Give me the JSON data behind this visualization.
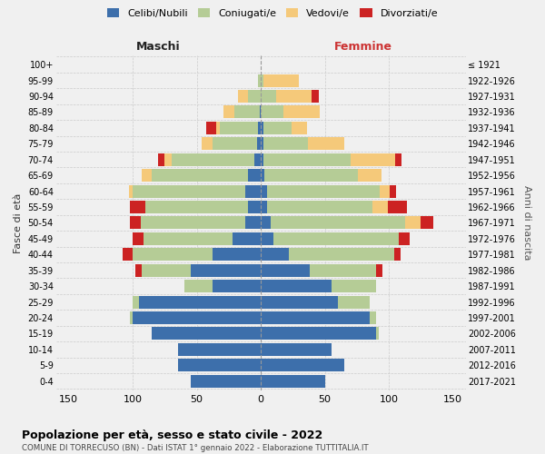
{
  "age_groups": [
    "100+",
    "95-99",
    "90-94",
    "85-89",
    "80-84",
    "75-79",
    "70-74",
    "65-69",
    "60-64",
    "55-59",
    "50-54",
    "45-49",
    "40-44",
    "35-39",
    "30-34",
    "25-29",
    "20-24",
    "15-19",
    "10-14",
    "5-9",
    "0-4"
  ],
  "birth_years": [
    "≤ 1921",
    "1922-1926",
    "1927-1931",
    "1932-1936",
    "1937-1941",
    "1942-1946",
    "1947-1951",
    "1952-1956",
    "1957-1961",
    "1962-1966",
    "1967-1971",
    "1972-1976",
    "1977-1981",
    "1982-1986",
    "1987-1991",
    "1992-1996",
    "1997-2001",
    "2002-2006",
    "2007-2011",
    "2012-2016",
    "2017-2021"
  ],
  "maschi": {
    "celibi": [
      0,
      0,
      0,
      1,
      2,
      3,
      5,
      10,
      12,
      10,
      12,
      22,
      38,
      55,
      38,
      95,
      100,
      85,
      65,
      65,
      55
    ],
    "coniugati": [
      0,
      2,
      10,
      20,
      30,
      35,
      65,
      75,
      88,
      80,
      82,
      70,
      62,
      38,
      22,
      5,
      2,
      0,
      0,
      0,
      0
    ],
    "vedovi": [
      0,
      0,
      8,
      8,
      3,
      8,
      5,
      8,
      3,
      0,
      0,
      0,
      0,
      0,
      0,
      0,
      0,
      0,
      0,
      0,
      0
    ],
    "divorziati": [
      0,
      0,
      0,
      0,
      8,
      0,
      5,
      0,
      0,
      12,
      8,
      8,
      8,
      5,
      0,
      0,
      0,
      0,
      0,
      0,
      0
    ]
  },
  "femmine": {
    "nubili": [
      0,
      0,
      0,
      0,
      2,
      2,
      2,
      3,
      5,
      5,
      8,
      10,
      22,
      38,
      55,
      60,
      85,
      90,
      55,
      65,
      50
    ],
    "coniugate": [
      0,
      2,
      12,
      18,
      22,
      35,
      68,
      73,
      88,
      82,
      105,
      98,
      82,
      52,
      35,
      25,
      5,
      2,
      0,
      0,
      0
    ],
    "vedove": [
      0,
      28,
      28,
      28,
      12,
      28,
      35,
      18,
      8,
      12,
      12,
      0,
      0,
      0,
      0,
      0,
      0,
      0,
      0,
      0,
      0
    ],
    "divorziate": [
      0,
      0,
      5,
      0,
      0,
      0,
      5,
      0,
      5,
      15,
      10,
      8,
      5,
      5,
      0,
      0,
      0,
      0,
      0,
      0,
      0
    ]
  },
  "color_celibi": "#3d6fab",
  "color_coniugati": "#b5cc96",
  "color_vedovi": "#f5c97a",
  "color_divorziati": "#cc2222",
  "title": "Popolazione per età, sesso e stato civile - 2022",
  "subtitle": "COMUNE DI TORRECUSO (BN) - Dati ISTAT 1° gennaio 2022 - Elaborazione TUTTITALIA.IT",
  "ylabel": "Fasce di età",
  "ylabel2": "Anni di nascita",
  "xlabel_maschi": "Maschi",
  "xlabel_femmine": "Femmine",
  "xlim": 160,
  "background_color": "#f0f0f0"
}
